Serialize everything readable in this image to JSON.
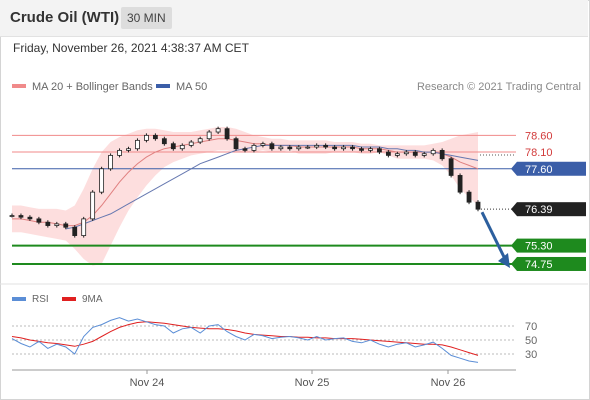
{
  "header": {
    "instrument": "Crude Oil (WTI)",
    "timeframe": "30 MIN"
  },
  "timestamp": "Friday, November 26, 2021 4:38:37 AM CET",
  "credit": "Research © 2021 Trading Central",
  "colors": {
    "resistance": "#f08a8a",
    "pivot": "#3b5ea8",
    "support": "#1e8a1e",
    "price": "#222222",
    "bollinger": "#fdd8d8",
    "ma20": "#e08080",
    "ma50": "#6678b0",
    "rsi": "#5b8ed6",
    "rsi_ma": "#e02020",
    "arrow": "#2c5f9e"
  },
  "chart_data": [
    {
      "type": "line",
      "panel": "price",
      "legend": [
        {
          "name": "MA 20 + Bollinger Bands",
          "color": "#f08a8a"
        },
        {
          "name": "MA 50",
          "color": "#3b5ea8"
        }
      ],
      "x_ticks": [
        "Nov 24",
        "Nov 25",
        "Nov 26"
      ],
      "ylim": [
        74.45,
        78.85
      ],
      "levels": [
        {
          "label": "78.60",
          "value": 78.6,
          "kind": "resistance"
        },
        {
          "label": "78.10",
          "value": 78.1,
          "kind": "resistance"
        },
        {
          "label": "77.60",
          "value": 77.6,
          "kind": "pivot"
        },
        {
          "label": "75.30",
          "value": 75.3,
          "kind": "support"
        },
        {
          "label": "74.75",
          "value": 74.75,
          "kind": "support"
        }
      ],
      "last_price": {
        "label": "76.39",
        "value": 76.39
      },
      "series": [
        {
          "name": "Crude Oil (WTI)",
          "values": [
            76.2,
            76.15,
            76.1,
            76.0,
            75.9,
            75.95,
            75.85,
            75.6,
            76.1,
            76.9,
            77.6,
            78.0,
            78.15,
            78.2,
            78.45,
            78.6,
            78.5,
            78.35,
            78.2,
            78.3,
            78.4,
            78.5,
            78.7,
            78.8,
            78.5,
            78.2,
            78.15,
            78.3,
            78.35,
            78.2,
            78.25,
            78.2,
            78.25,
            78.25,
            78.3,
            78.25,
            78.2,
            78.25,
            78.2,
            78.15,
            78.2,
            78.1,
            78.0,
            78.05,
            78.1,
            78.0,
            78.05,
            78.15,
            77.9,
            77.4,
            76.9,
            76.6,
            76.39
          ]
        },
        {
          "name": "MA 20",
          "values": [
            76.1,
            76.1,
            76.05,
            76.0,
            76.0,
            75.95,
            75.9,
            75.9,
            76.0,
            76.2,
            76.5,
            76.85,
            77.2,
            77.5,
            77.75,
            77.95,
            78.1,
            78.2,
            78.25,
            78.3,
            78.35,
            78.4,
            78.45,
            78.5,
            78.5,
            78.45,
            78.4,
            78.35,
            78.35,
            78.3,
            78.3,
            78.3,
            78.25,
            78.25,
            78.25,
            78.25,
            78.25,
            78.25,
            78.25,
            78.2,
            78.2,
            78.2,
            78.15,
            78.1,
            78.1,
            78.1,
            78.1,
            78.1,
            78.05,
            77.95,
            77.8,
            77.7,
            77.6
          ]
        },
        {
          "name": "MA 50",
          "values": [
            null,
            null,
            null,
            null,
            null,
            null,
            75.8,
            75.85,
            75.95,
            76.05,
            76.15,
            76.25,
            76.4,
            76.55,
            76.7,
            76.85,
            77.0,
            77.15,
            77.3,
            77.45,
            77.6,
            77.75,
            77.85,
            77.95,
            78.05,
            78.15,
            78.2,
            78.25,
            78.3,
            78.3,
            78.3,
            78.3,
            78.3,
            78.3,
            78.3,
            78.3,
            78.3,
            78.3,
            78.3,
            78.25,
            78.25,
            78.25,
            78.2,
            78.2,
            78.15,
            78.15,
            78.1,
            78.1,
            78.05,
            78.0,
            77.95,
            77.9,
            77.85
          ]
        },
        {
          "name": "Bollinger Upper",
          "values": [
            76.5,
            76.5,
            76.45,
            76.4,
            76.4,
            76.4,
            76.35,
            76.5,
            77.0,
            77.6,
            78.1,
            78.4,
            78.55,
            78.65,
            78.75,
            78.8,
            78.8,
            78.75,
            78.7,
            78.7,
            78.7,
            78.75,
            78.8,
            78.85,
            78.85,
            78.8,
            78.7,
            78.6,
            78.55,
            78.5,
            78.5,
            78.45,
            78.45,
            78.45,
            78.45,
            78.45,
            78.4,
            78.4,
            78.4,
            78.35,
            78.35,
            78.3,
            78.3,
            78.3,
            78.3,
            78.3,
            78.3,
            78.35,
            78.4,
            78.5,
            78.6,
            78.65,
            78.7
          ]
        },
        {
          "name": "Bollinger Lower",
          "values": [
            75.7,
            75.7,
            75.65,
            75.6,
            75.55,
            75.5,
            75.45,
            75.2,
            74.9,
            74.7,
            74.75,
            75.3,
            75.85,
            76.35,
            76.75,
            77.1,
            77.4,
            77.65,
            77.8,
            77.9,
            78.0,
            78.05,
            78.1,
            78.15,
            78.15,
            78.1,
            78.1,
            78.1,
            78.15,
            78.1,
            78.1,
            78.15,
            78.05,
            78.05,
            78.05,
            78.05,
            78.1,
            78.1,
            78.1,
            78.05,
            78.05,
            78.1,
            78.0,
            77.9,
            77.9,
            77.9,
            77.9,
            77.85,
            77.7,
            77.4,
            77.0,
            76.75,
            76.5
          ]
        }
      ]
    },
    {
      "type": "line",
      "panel": "rsi",
      "legend": [
        {
          "name": "RSI",
          "color": "#5b8ed6"
        },
        {
          "name": "9MA",
          "color": "#e02020"
        }
      ],
      "ylim": [
        10,
        90
      ],
      "y_ticks": [
        70,
        50,
        30
      ],
      "series": [
        {
          "name": "RSI",
          "values": [
            52,
            45,
            40,
            48,
            38,
            44,
            40,
            30,
            55,
            68,
            72,
            78,
            82,
            77,
            80,
            76,
            72,
            70,
            60,
            66,
            68,
            60,
            70,
            72,
            62,
            55,
            50,
            58,
            56,
            52,
            54,
            55,
            53,
            50,
            55,
            50,
            52,
            53,
            48,
            46,
            50,
            44,
            40,
            44,
            46,
            40,
            43,
            47,
            38,
            28,
            24,
            20,
            18
          ]
        },
        {
          "name": "9MA",
          "values": [
            55,
            53,
            50,
            48,
            46,
            45,
            43,
            41,
            44,
            48,
            55,
            62,
            68,
            72,
            75,
            76,
            75,
            74,
            72,
            70,
            68,
            67,
            66,
            66,
            65,
            63,
            60,
            58,
            57,
            56,
            55,
            55,
            54,
            54,
            53,
            53,
            52,
            52,
            52,
            51,
            50,
            49,
            48,
            47,
            46,
            45,
            44,
            44,
            43,
            40,
            36,
            32,
            28
          ]
        }
      ]
    }
  ]
}
